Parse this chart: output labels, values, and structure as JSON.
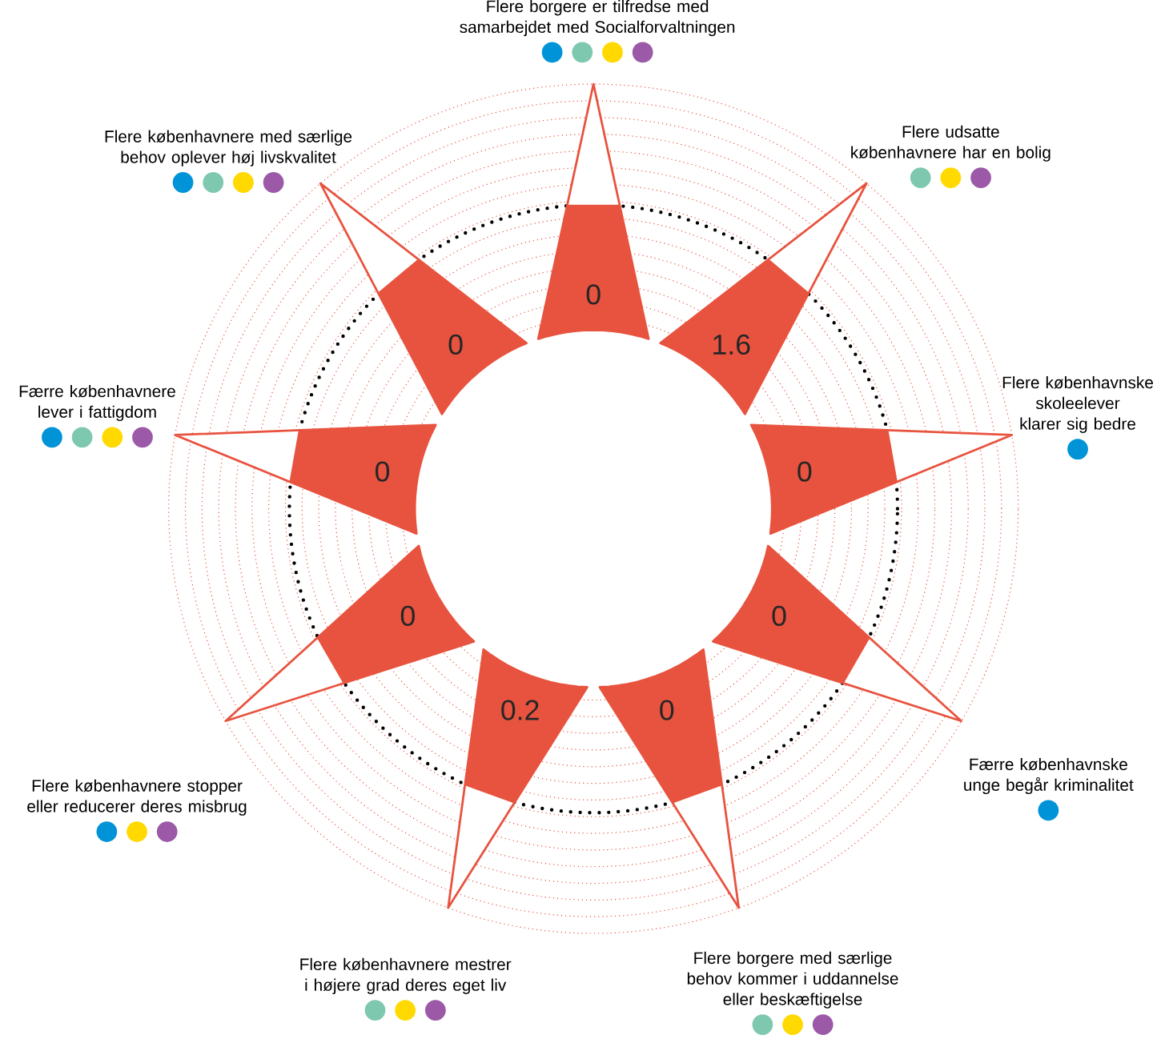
{
  "chart_data": {
    "type": "other",
    "categories": [
      "Flere borgere er tilfredse med samarbejdet med Socialforvaltningen",
      "Flere udsatte københavnere har en bolig",
      "Flere københavnske skoleelever klarer sig bedre",
      "Færre københavnske unge begår kriminalitet",
      "Flere borgere med særlige behov kommer i uddannelse eller beskæftigelse",
      "Flere københavnere mestrer i højere grad deres eget liv",
      "Flere københavnere stopper eller reducerer deres misbrug",
      "Færre københavnere lever i fattigdom",
      "Flere københavnere med særlige behov oplever høj livskvalitet"
    ],
    "values": [
      0,
      1.6,
      0,
      0,
      0,
      0.2,
      0,
      0,
      0
    ],
    "data_labels": true,
    "color": "#e8533f"
  }
}
